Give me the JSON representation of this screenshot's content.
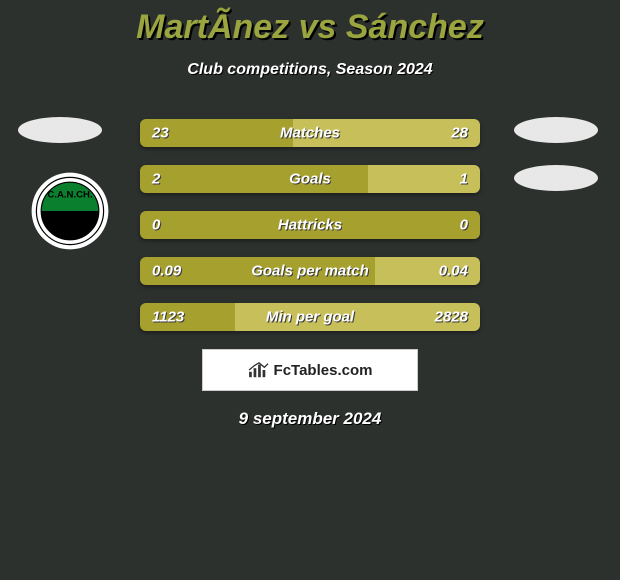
{
  "title": "MartÃnez vs Sánchez",
  "subtitle": "Club competitions, Season 2024",
  "date": "9 september 2024",
  "footer": {
    "brand": "FcTables.com"
  },
  "colors": {
    "left_bar": "#a6a02f",
    "right_bar": "#c7c05a",
    "right_bar_alt": "#a6a02f",
    "title": "#9aa53f",
    "background": "#2d312e"
  },
  "club_badge": {
    "letters": "C.A.N.CH.",
    "top_color": "#0a7f2e",
    "bottom_color": "#000000",
    "ring_color": "#ffffff"
  },
  "rows": [
    {
      "label": "Matches",
      "left_val": "23",
      "right_val": "28",
      "left_pct": 45,
      "left_color": "#a6a02f",
      "right_color": "#c7c05a"
    },
    {
      "label": "Goals",
      "left_val": "2",
      "right_val": "1",
      "left_pct": 67,
      "left_color": "#a6a02f",
      "right_color": "#c7c05a"
    },
    {
      "label": "Hattricks",
      "left_val": "0",
      "right_val": "0",
      "left_pct": 50,
      "left_color": "#a6a02f",
      "right_color": "#a6a02f"
    },
    {
      "label": "Goals per match",
      "left_val": "0.09",
      "right_val": "0.04",
      "left_pct": 69,
      "left_color": "#a6a02f",
      "right_color": "#c7c05a"
    },
    {
      "label": "Min per goal",
      "left_val": "1123",
      "right_val": "2828",
      "left_pct": 28,
      "left_color": "#a6a02f",
      "right_color": "#c7c05a"
    }
  ]
}
